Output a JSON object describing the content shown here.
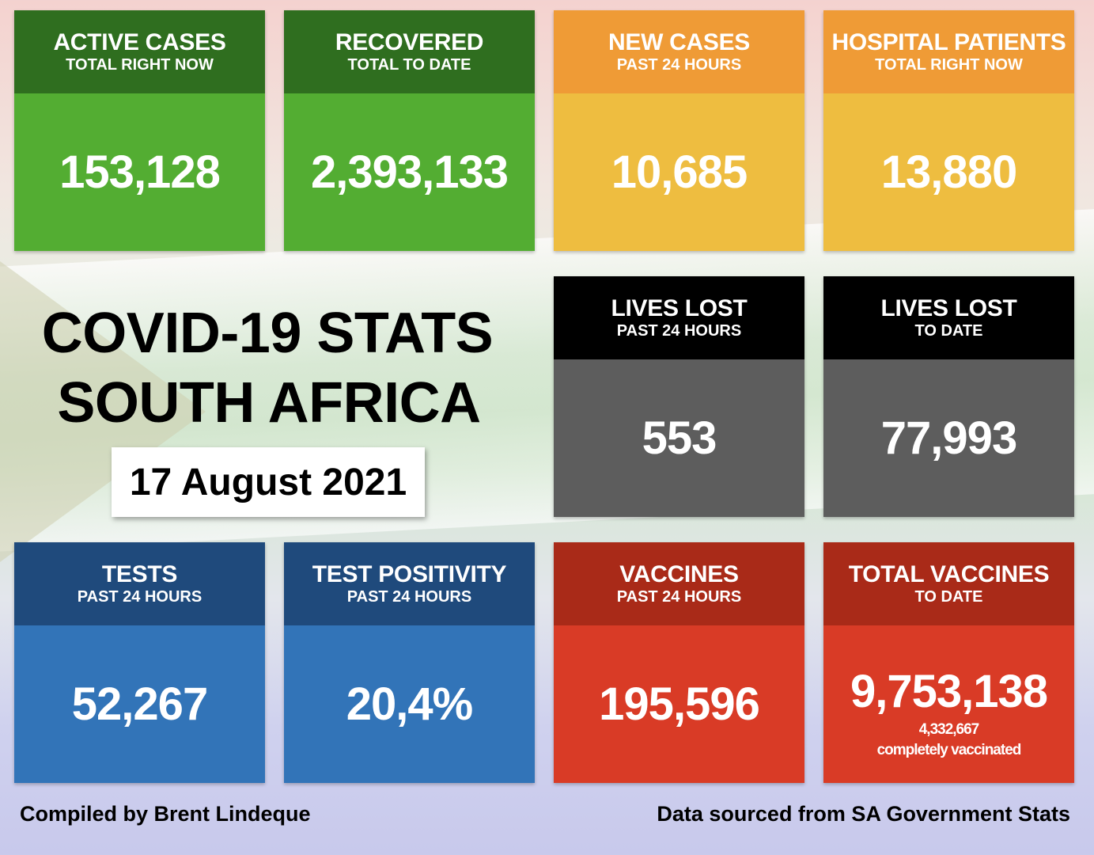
{
  "title": {
    "line1": "COVID-19 STATS",
    "line2": "SOUTH AFRICA",
    "date": "17 August 2021"
  },
  "tiles": [
    {
      "title": "ACTIVE CASES",
      "subtitle": "TOTAL RIGHT NOW",
      "value": "153,128",
      "color": "#53ad32"
    },
    {
      "title": "RECOVERED",
      "subtitle": "TOTAL TO DATE",
      "value": "2,393,133",
      "color": "#53ad32"
    },
    {
      "title": "NEW CASES",
      "subtitle": "PAST 24 HOURS",
      "value": "10,685",
      "color": "#eebd40"
    },
    {
      "title": "HOSPITAL PATIENTS",
      "subtitle": "TOTAL RIGHT NOW",
      "value": "13,880",
      "color": "#eebd40"
    },
    {
      "title": "LIVES LOST",
      "subtitle": "PAST 24 HOURS",
      "value": "553",
      "color": "#5d5d5d"
    },
    {
      "title": "LIVES LOST",
      "subtitle": "TO DATE",
      "value": "77,993",
      "color": "#5d5d5d"
    },
    {
      "title": "TESTS",
      "subtitle": "PAST 24 HOURS",
      "value": "52,267",
      "color": "#3274b8"
    },
    {
      "title": "TEST POSITIVITY",
      "subtitle": "PAST 24 HOURS",
      "value": "20,4%",
      "color": "#3274b8"
    },
    {
      "title": "VACCINES",
      "subtitle": "PAST 24 HOURS",
      "value": "195,596",
      "color": "#d93b26"
    },
    {
      "title": "TOTAL VACCINES",
      "subtitle": "TO DATE",
      "value": "9,753,138",
      "color": "#d93b26",
      "note_value": "4,332,667",
      "note_label": "completely vaccinated"
    }
  ],
  "footer": {
    "left": "Compiled by Brent Lindeque",
    "right": "Data sourced from SA Government Stats"
  }
}
